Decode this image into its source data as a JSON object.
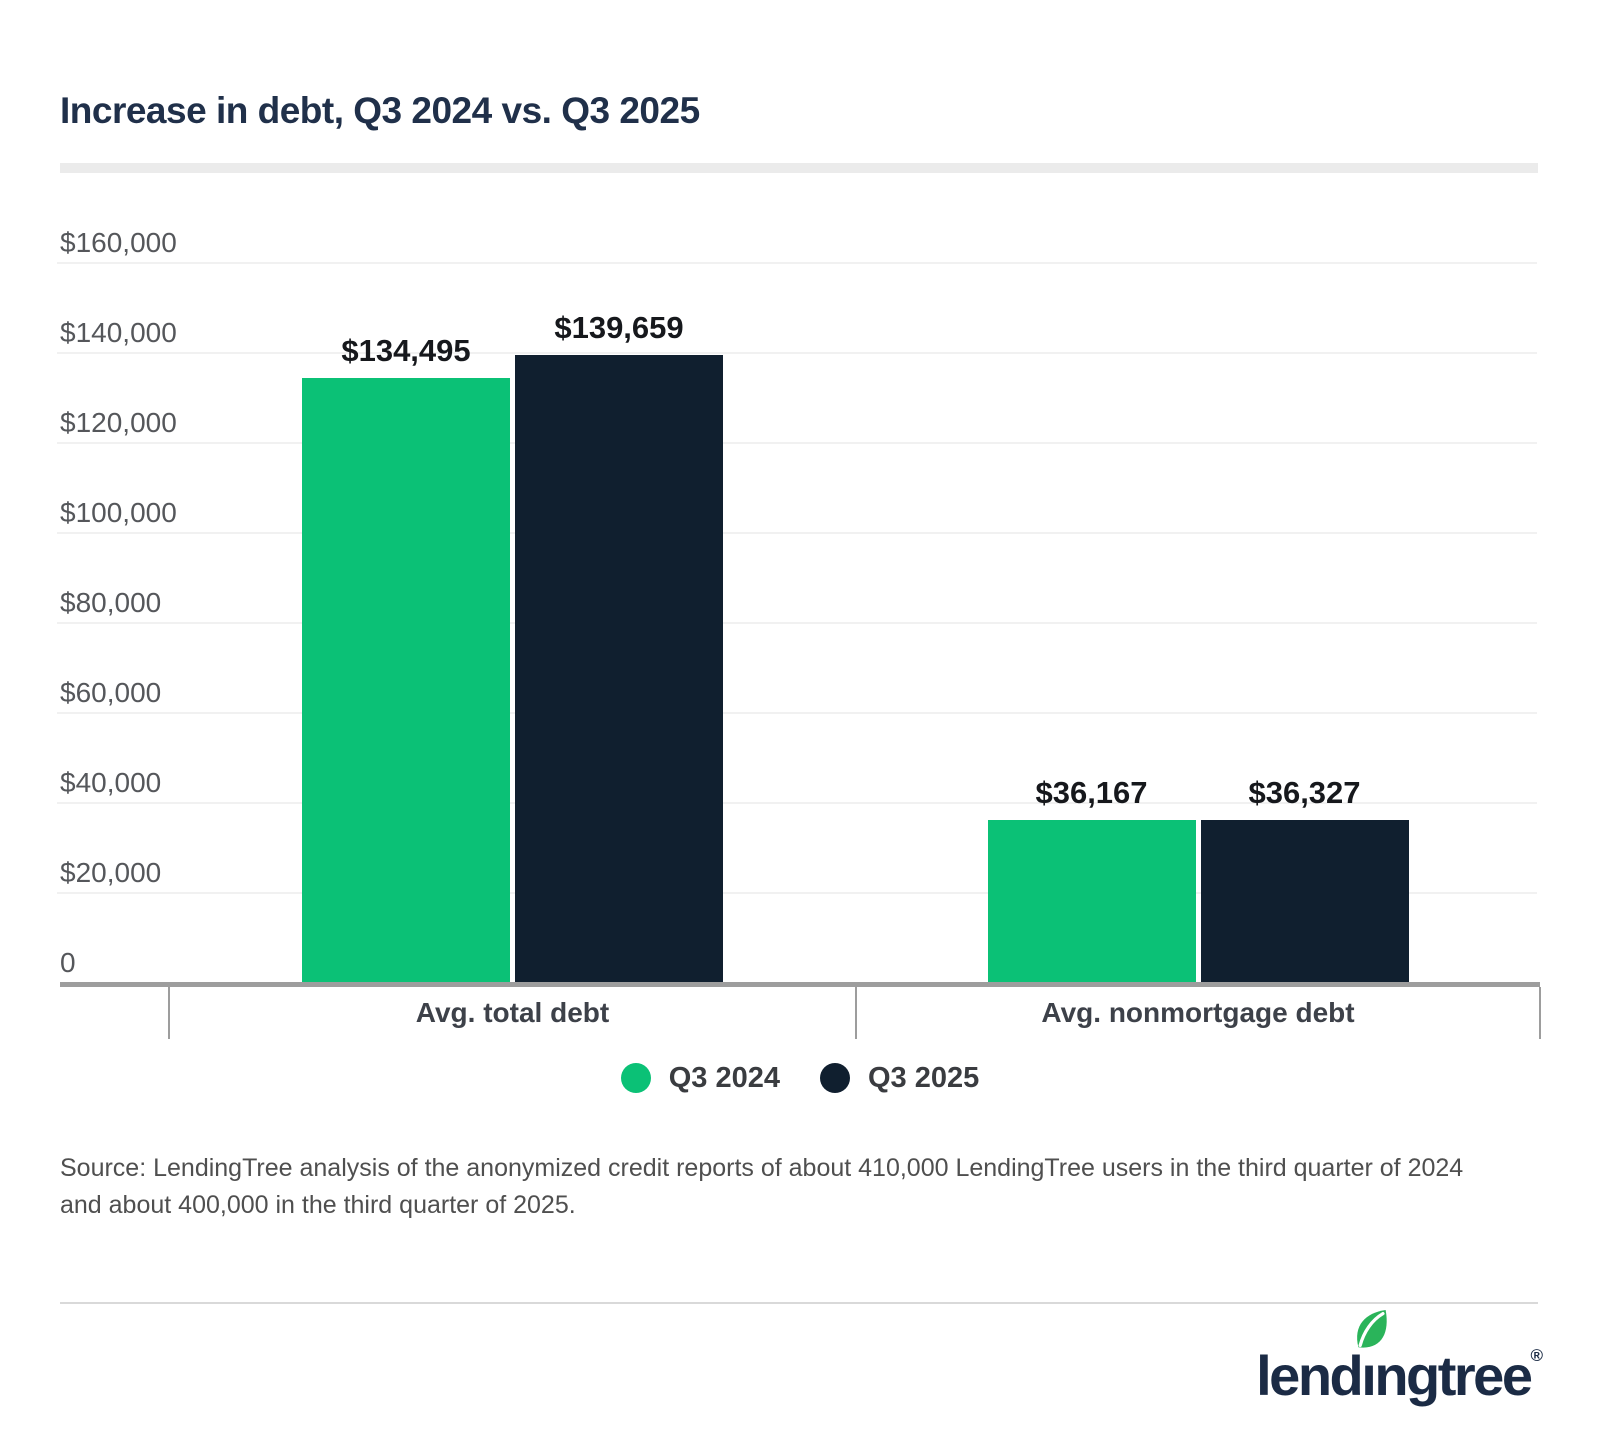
{
  "chart_data": {
    "type": "bar",
    "title": "Increase in debt, Q3 2024 vs. Q3 2025",
    "categories": [
      "Avg. total debt",
      "Avg. nonmortgage debt"
    ],
    "series": [
      {
        "name": "Q3 2024",
        "color": "#0bc176",
        "values": [
          134495,
          36167
        ],
        "labels": [
          "$134,495",
          "$36,167"
        ]
      },
      {
        "name": "Q3 2025",
        "color": "#101f2f",
        "values": [
          139659,
          36327
        ],
        "labels": [
          "$139,659",
          "$36,327"
        ]
      }
    ],
    "ylim": [
      0,
      160000
    ],
    "yticks": [
      {
        "label": "$160,000",
        "value": 160000
      },
      {
        "label": "$140,000",
        "value": 140000
      },
      {
        "label": "$120,000",
        "value": 120000
      },
      {
        "label": "$100,000",
        "value": 100000
      },
      {
        "label": "$80,000",
        "value": 80000
      },
      {
        "label": "$60,000",
        "value": 60000
      },
      {
        "label": "$40,000",
        "value": 40000
      },
      {
        "label": "$20,000",
        "value": 20000
      },
      {
        "label": "0",
        "value": 0
      }
    ],
    "grid": true,
    "legend_position": "bottom"
  },
  "source": {
    "text": "Source: LendingTree analysis of the anonymized credit reports of about 410,000 LendingTree users in the third quarter of 2024 and about 400,000 in the third quarter of 2025."
  },
  "brand": {
    "wordmark_pre": "lend",
    "wordmark_i": "ı",
    "wordmark_post": "ngtree",
    "registered": "®",
    "leaf_color": "#2ab45a",
    "navy": "#1b2b45"
  },
  "colors": {
    "title": "#20304a",
    "green_bar": "#0bc176",
    "navy_bar": "#101f2f",
    "axis": "#9d9d9d",
    "gridline": "#f1f1f1",
    "band": "#ebebeb"
  }
}
